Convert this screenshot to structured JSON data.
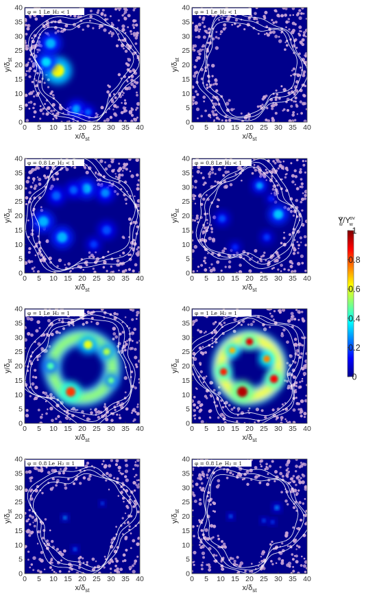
{
  "chart_data": {
    "type": "heatmap",
    "panel_grid": {
      "rows": 4,
      "cols": 2
    },
    "axes": {
      "xlabel": "x/δ",
      "xlabel_sub": "st",
      "ylabel": "y/δ",
      "ylabel_sub": "st",
      "xlim": [
        0,
        40
      ],
      "ylim": [
        0,
        40
      ],
      "ticks": [
        0,
        5,
        10,
        15,
        20,
        25,
        30,
        35,
        40
      ]
    },
    "colorbar": {
      "title": "Y/Y",
      "title_sup1": "g",
      "title_sub1": "w",
      "title_sup2": "ov",
      "title_sub2": "w",
      "range": [
        0,
        1
      ],
      "ticks": [
        {
          "value": 0,
          "label": "0"
        },
        {
          "value": 0.2,
          "label": "0.2"
        },
        {
          "value": 0.4,
          "label": "0.4"
        },
        {
          "value": 0.6,
          "label": "0.6"
        },
        {
          "value": 0.8,
          "label": "0.8"
        },
        {
          "value": 1,
          "label": "1"
        }
      ],
      "colors": [
        "#00008f",
        "#0000ff",
        "#0080ff",
        "#00ffff",
        "#80ff80",
        "#ffff00",
        "#ff8000",
        "#ff0000",
        "#800000"
      ]
    },
    "panels": [
      {
        "row": 0,
        "col": 0,
        "note": "φ = 1    Le_H₂ < 1",
        "show_note": true,
        "droplet_count": 520,
        "core_radius": 13.5,
        "hotspots": [
          {
            "x": 11.5,
            "y": 18,
            "r": 3.2,
            "value": 0.62
          },
          {
            "x": 7.5,
            "y": 21,
            "r": 2.4,
            "value": 0.34
          },
          {
            "x": 9,
            "y": 27.5,
            "r": 2.5,
            "value": 0.3
          },
          {
            "x": 18,
            "y": 4.5,
            "r": 2.2,
            "value": 0.28
          },
          {
            "x": 22,
            "y": 3.5,
            "r": 1.6,
            "value": 0.22
          }
        ]
      },
      {
        "row": 0,
        "col": 1,
        "note": "φ = 1    Le_H₂ < 1",
        "show_note": true,
        "droplet_count": 520,
        "core_radius": 13,
        "hotspots": []
      },
      {
        "row": 1,
        "col": 0,
        "note": "φ = 0.8    Le_H₂ < 1",
        "show_note": true,
        "droplet_count": 430,
        "core_radius": 14.5,
        "hotspots": [
          {
            "x": 6.5,
            "y": 18,
            "r": 2.6,
            "value": 0.3
          },
          {
            "x": 13,
            "y": 12.5,
            "r": 2.6,
            "value": 0.3
          },
          {
            "x": 21.5,
            "y": 29.5,
            "r": 2.4,
            "value": 0.3
          },
          {
            "x": 28,
            "y": 28,
            "r": 2.2,
            "value": 0.26
          },
          {
            "x": 11,
            "y": 27,
            "r": 2.2,
            "value": 0.22
          },
          {
            "x": 28.5,
            "y": 15,
            "r": 2.2,
            "value": 0.2
          },
          {
            "x": 17,
            "y": 29,
            "r": 2,
            "value": 0.22
          },
          {
            "x": 24,
            "y": 10,
            "r": 1.8,
            "value": 0.18
          }
        ]
      },
      {
        "row": 1,
        "col": 1,
        "note": "φ = 0.8    Le_H₂ < 1",
        "show_note": true,
        "droplet_count": 460,
        "core_radius": 12.5,
        "hotspots": [
          {
            "x": 30,
            "y": 20.5,
            "r": 2.4,
            "value": 0.32
          },
          {
            "x": 23.5,
            "y": 30.5,
            "r": 1.8,
            "value": 0.28
          },
          {
            "x": 10.5,
            "y": 19,
            "r": 1.8,
            "value": 0.2
          },
          {
            "x": 26,
            "y": 12.5,
            "r": 1.6,
            "value": 0.18
          },
          {
            "x": 15,
            "y": 9,
            "r": 1.5,
            "value": 0.16
          },
          {
            "x": 27.5,
            "y": 26,
            "r": 1.4,
            "value": 0.15
          }
        ]
      },
      {
        "row": 2,
        "col": 0,
        "note": "φ = 1    Le_H₂ = 1",
        "show_note": true,
        "droplet_count": 420,
        "core_radius": 14,
        "ring": {
          "r": 10.5,
          "w": 3.4,
          "value": 0.52
        },
        "hotspots": [
          {
            "x": 16,
            "y": 11,
            "r": 2.4,
            "value": 0.82
          },
          {
            "x": 22,
            "y": 27.5,
            "r": 2.2,
            "value": 0.6
          },
          {
            "x": 28.5,
            "y": 25,
            "r": 1.8,
            "value": 0.55
          },
          {
            "x": 9,
            "y": 20,
            "r": 1.8,
            "value": 0.45
          },
          {
            "x": 30,
            "y": 15,
            "r": 1.6,
            "value": 0.48
          }
        ]
      },
      {
        "row": 2,
        "col": 1,
        "note": "φ = 1    Le_H₂ = 1",
        "show_note": true,
        "droplet_count": 420,
        "core_radius": 14,
        "ring": {
          "r": 10,
          "w": 3.4,
          "value": 0.62
        },
        "hotspots": [
          {
            "x": 17.5,
            "y": 11,
            "r": 2.6,
            "value": 0.95
          },
          {
            "x": 20,
            "y": 28.5,
            "r": 1.8,
            "value": 0.9
          },
          {
            "x": 28.5,
            "y": 15.5,
            "r": 2,
            "value": 0.88
          },
          {
            "x": 11,
            "y": 18,
            "r": 1.8,
            "value": 0.85
          },
          {
            "x": 26,
            "y": 22.5,
            "r": 1.8,
            "value": 0.75
          },
          {
            "x": 14,
            "y": 25.5,
            "r": 1.6,
            "value": 0.7
          }
        ]
      },
      {
        "row": 3,
        "col": 0,
        "note": "φ = 0.8    Le_H₂ = 1",
        "show_note": true,
        "droplet_count": 420,
        "core_radius": 13,
        "hotspots": [
          {
            "x": 14,
            "y": 19.5,
            "r": 0.8,
            "value": 0.3
          },
          {
            "x": 17.5,
            "y": 8.5,
            "r": 0.8,
            "value": 0.25
          },
          {
            "x": 27,
            "y": 24.5,
            "r": 0.7,
            "value": 0.22
          }
        ]
      },
      {
        "row": 3,
        "col": 1,
        "note": "φ = 0.8    Le_H₂ = 1",
        "show_note": true,
        "droplet_count": 440,
        "core_radius": 13,
        "hotspots": [
          {
            "x": 29.5,
            "y": 23,
            "r": 1,
            "value": 0.28
          },
          {
            "x": 13.5,
            "y": 20,
            "r": 0.8,
            "value": 0.25
          },
          {
            "x": 25,
            "y": 18.5,
            "r": 0.8,
            "value": 0.22
          },
          {
            "x": 28,
            "y": 18,
            "r": 0.8,
            "value": 0.2
          }
        ]
      }
    ]
  }
}
